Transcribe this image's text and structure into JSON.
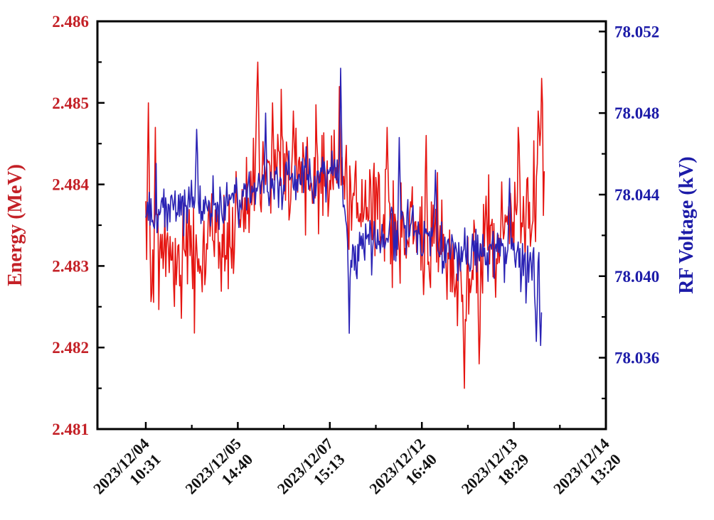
{
  "figure": {
    "background": "#ffffff",
    "frame_color": "#000000"
  },
  "chart_data": {
    "type": "line",
    "title": "",
    "grid": false,
    "legend": "none",
    "x_axis": {
      "kind": "category-time",
      "tick_labels": [
        {
          "date": "2023/12/04",
          "time": "10:31"
        },
        {
          "date": "2023/12/05",
          "time": "14:40"
        },
        {
          "date": "2023/12/07",
          "time": "15:13"
        },
        {
          "date": "2023/12/12",
          "time": "16:40"
        },
        {
          "date": "2023/12/13",
          "time": "18:29"
        },
        {
          "date": "2023/12/14",
          "time": "13:20"
        }
      ],
      "label_rotation_deg": -45,
      "minor_ticks_between_majors": 1
    },
    "left_axis": {
      "label": "Energy (MeV)",
      "color": "#c42127",
      "min": 2.481,
      "max": 2.486,
      "majors": [
        2.486,
        2.485,
        2.484,
        2.483,
        2.482,
        2.481
      ],
      "minors": [
        2.4855,
        2.4845,
        2.4835,
        2.4825,
        2.4815
      ],
      "decimals": 3
    },
    "right_axis": {
      "label": "RF Voltage (kV)",
      "color": "#1c1ba8",
      "min": 78.0325,
      "max": 78.0525,
      "majors": [
        78.052,
        78.048,
        78.044,
        78.04,
        78.036
      ],
      "minors": [
        78.05,
        78.046,
        78.042,
        78.038,
        78.034
      ],
      "decimals": 3
    },
    "series": [
      {
        "name": "Energy",
        "axis": "left",
        "color": "#e51410",
        "line_width": 1.6,
        "seed": 42,
        "n_points": 460,
        "t_start": 0.0,
        "t_end": 4.33,
        "envelope": [
          [
            0.0,
            2.4835,
            0.0009
          ],
          [
            0.08,
            2.4831,
            0.0008
          ],
          [
            0.95,
            2.4833,
            0.0008
          ],
          [
            1.15,
            2.484,
            0.0008
          ],
          [
            1.7,
            2.4842,
            0.0008
          ],
          [
            2.1,
            2.4841,
            0.0009
          ],
          [
            2.25,
            2.4837,
            0.0008
          ],
          [
            3.1,
            2.4834,
            0.0009
          ],
          [
            3.45,
            2.4828,
            0.001
          ],
          [
            3.7,
            2.4833,
            0.0009
          ],
          [
            4.1,
            2.4836,
            0.0008
          ],
          [
            4.33,
            2.4843,
            0.0009
          ]
        ],
        "spikes": [
          [
            0.03,
            2.485
          ],
          [
            0.1,
            2.4847
          ],
          [
            1.22,
            2.4855
          ],
          [
            1.38,
            2.485
          ],
          [
            1.6,
            2.4849
          ],
          [
            2.1,
            2.4852
          ],
          [
            2.62,
            2.4847
          ],
          [
            3.05,
            2.4846
          ],
          [
            3.46,
            2.4815
          ],
          [
            3.62,
            2.4818
          ],
          [
            4.05,
            2.4847
          ],
          [
            4.26,
            2.4849
          ],
          [
            4.3,
            2.4853
          ]
        ]
      },
      {
        "name": "RF Voltage",
        "axis": "right",
        "color": "#2a22b4",
        "line_width": 1.6,
        "seed": 1337,
        "n_points": 460,
        "t_start": 0.0,
        "t_end": 4.3,
        "envelope": [
          [
            0.0,
            78.0433,
            0.0016
          ],
          [
            0.9,
            78.0437,
            0.0016
          ],
          [
            1.4,
            78.0446,
            0.0015
          ],
          [
            2.05,
            78.045,
            0.0016
          ],
          [
            2.15,
            78.0446,
            0.0017
          ],
          [
            2.18,
            78.0416,
            0.0017
          ],
          [
            2.9,
            78.0424,
            0.0015
          ],
          [
            3.3,
            78.0416,
            0.0015
          ],
          [
            3.8,
            78.0412,
            0.0016
          ],
          [
            4.2,
            78.0408,
            0.0017
          ],
          [
            4.3,
            78.04,
            0.0018
          ]
        ],
        "spikes": [
          [
            0.55,
            78.0472
          ],
          [
            1.3,
            78.048
          ],
          [
            2.12,
            78.0502
          ],
          [
            2.21,
            78.0372
          ],
          [
            2.75,
            78.0468
          ],
          [
            3.15,
            78.0452
          ],
          [
            3.95,
            78.0448
          ],
          [
            4.24,
            78.0368
          ],
          [
            4.29,
            78.0366
          ]
        ]
      }
    ]
  }
}
